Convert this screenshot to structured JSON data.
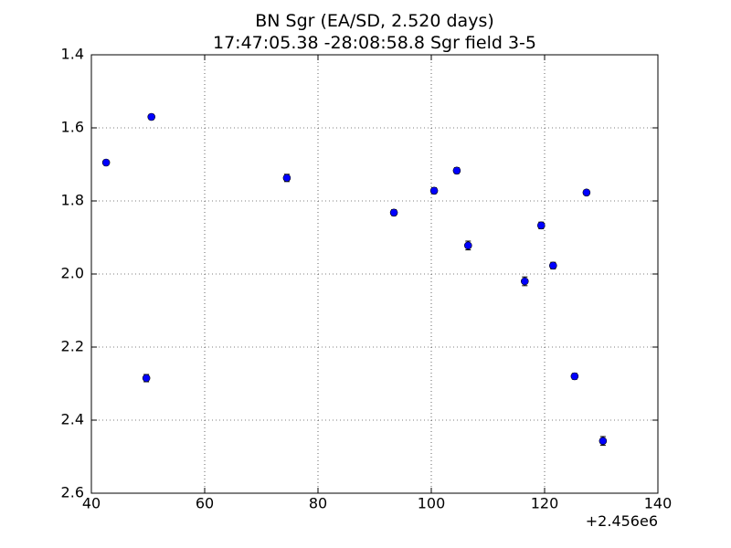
{
  "chart_data": {
    "type": "scatter",
    "title": "BN Sgr (EA/SD, 2.520 days)",
    "subtitle": "17:47:05.38 -28:08:58.8 Sgr field 3-5",
    "x_offset_label": "+2.456e6",
    "x": [
      42.6,
      49.7,
      50.6,
      74.5,
      93.4,
      100.5,
      104.5,
      106.5,
      116.5,
      119.4,
      121.5,
      125.3,
      127.4,
      130.3
    ],
    "y": [
      1.695,
      2.285,
      1.57,
      1.737,
      1.832,
      1.772,
      1.717,
      1.922,
      2.02,
      1.867,
      1.977,
      2.28,
      1.777,
      2.457
    ],
    "errors": [
      0.007,
      0.01,
      0.007,
      0.01,
      0.008,
      0.008,
      0.008,
      0.012,
      0.012,
      0.009,
      0.009,
      0.008,
      0.007,
      0.012
    ],
    "color": "#0000ff",
    "xlim": [
      40,
      140
    ],
    "xticks": [
      40,
      60,
      80,
      100,
      120,
      140
    ],
    "ylim": [
      1.4,
      2.6
    ],
    "yticks": [
      1.4,
      1.6,
      1.8,
      {
        "value": 2,
        "label": "2.0"
      },
      2.2,
      2.4,
      2.6
    ],
    "y_inverted": true,
    "grid": true
  }
}
